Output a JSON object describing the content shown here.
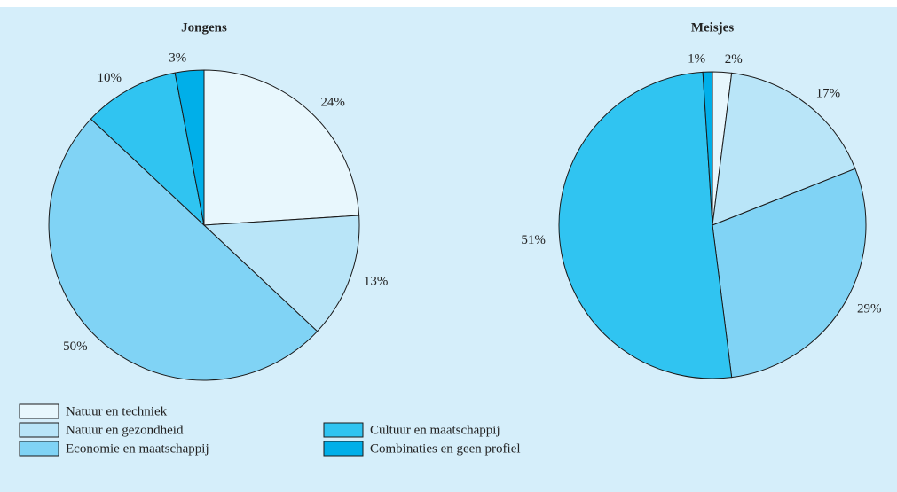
{
  "chart_data": {
    "type": "pie",
    "categories": [
      "Natuur en techniek",
      "Natuur en gezondheid",
      "Economie en maatschappij",
      "Cultuur en maatschappij",
      "Combinaties en geen profiel"
    ],
    "colors": [
      "#e8f7fd",
      "#b9e5f8",
      "#80d3f5",
      "#30c4f1",
      "#00afe9"
    ],
    "series": [
      {
        "name": "Jongens",
        "values": [
          24,
          13,
          50,
          10,
          3
        ],
        "value_labels": [
          "24%",
          "13%",
          "50%",
          "10%",
          "3%"
        ]
      },
      {
        "name": "Meisjes",
        "values": [
          2,
          17,
          29,
          51,
          1
        ],
        "value_labels": [
          "2%",
          "17%",
          "29%",
          "51%",
          "1%"
        ]
      }
    ]
  }
}
